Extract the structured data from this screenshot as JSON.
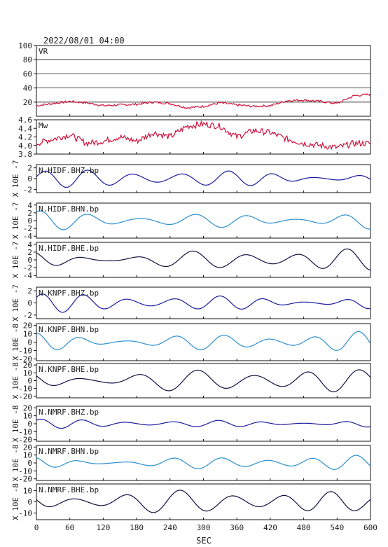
{
  "header": {
    "timestamp": "2022/08/01 04:00"
  },
  "chart_data": {
    "type": "line",
    "x_axis": {
      "label": "SEC",
      "range": [
        0,
        600
      ],
      "ticks": [
        "0",
        "60",
        "120",
        "180",
        "240",
        "300",
        "360",
        "420",
        "480",
        "540",
        "600"
      ]
    },
    "panels": [
      {
        "id": "vr",
        "title": "VR",
        "ylabel": "",
        "ylim": [
          0,
          100
        ],
        "yticks": [
          "100",
          "80",
          "60",
          "40",
          "20"
        ],
        "tickvals": [
          100,
          80,
          60,
          40,
          20
        ],
        "hgrid": true,
        "color": "#d0103a",
        "series": {
          "type": "keys",
          "x": [
            0,
            30,
            60,
            90,
            120,
            150,
            180,
            210,
            240,
            270,
            300,
            330,
            360,
            390,
            420,
            450,
            480,
            510,
            540,
            570,
            600
          ],
          "values": [
            15,
            18,
            21,
            19,
            15,
            16,
            17,
            20,
            18,
            12,
            14,
            19,
            16,
            14,
            15,
            22,
            23,
            21,
            18,
            29,
            31
          ]
        }
      },
      {
        "id": "mw",
        "title": "Mw",
        "ylabel": "",
        "ylim": [
          3.8,
          4.6
        ],
        "yticks": [
          "4.6",
          "4.4",
          "4.2",
          "4.0",
          "3.8"
        ],
        "tickvals": [
          4.6,
          4.4,
          4.2,
          4.0,
          3.8
        ],
        "hgrid": false,
        "color": "#d0103a",
        "series": {
          "type": "keys",
          "x": [
            0,
            30,
            60,
            90,
            120,
            150,
            180,
            210,
            240,
            270,
            300,
            330,
            360,
            390,
            420,
            450,
            480,
            510,
            540,
            570,
            600
          ],
          "values": [
            4.05,
            4.15,
            4.25,
            4.05,
            4.1,
            4.2,
            4.1,
            4.3,
            4.2,
            4.45,
            4.5,
            4.45,
            4.2,
            4.35,
            4.3,
            4.15,
            4.05,
            4.0,
            3.95,
            4.05,
            4.05
          ]
        }
      },
      {
        "id": "hidf-bhz",
        "title": "N.HIDF.BHZ.bp",
        "ylabel": "X 10E -7",
        "ylim": [
          -2.6,
          2.6
        ],
        "yticks": [
          "2",
          "0",
          "-2"
        ],
        "tickvals": [
          2,
          0,
          -2
        ],
        "hgrid": false,
        "color": "#1a1aa0",
        "series": {
          "type": "wave",
          "amp": 1.4,
          "freq": 0.068,
          "phase": 0.3
        }
      },
      {
        "id": "hidf-bhn",
        "title": "N.HIDF.BHN.bp",
        "ylabel": "X 10E -7",
        "ylim": [
          -4.5,
          4.5
        ],
        "yticks": [
          "4",
          "2",
          "0",
          "-2",
          "-4"
        ],
        "tickvals": [
          4,
          2,
          0,
          -2,
          -4
        ],
        "hgrid": false,
        "color": "#2a8fd0",
        "series": {
          "type": "wave",
          "amp": 2.2,
          "freq": 0.06,
          "phase": 1.1
        }
      },
      {
        "id": "hidf-bhe",
        "title": "N.HIDF.BHE.bp",
        "ylabel": "X 10E -7",
        "ylim": [
          -4.5,
          4.5
        ],
        "yticks": [
          "4",
          "2",
          "0",
          "-2",
          "-4"
        ],
        "tickvals": [
          4,
          2,
          0,
          -2,
          -4
        ],
        "hgrid": false,
        "color": "#101040",
        "series": {
          "type": "wave",
          "amp": 2.4,
          "freq": 0.058,
          "phase": 2.0
        }
      },
      {
        "id": "knpf-bhz",
        "title": "N.KNPF.BHZ.bp",
        "ylabel": "X 10E -7",
        "ylim": [
          -2.6,
          2.6
        ],
        "yticks": [
          "2",
          "0",
          "-2"
        ],
        "tickvals": [
          2,
          0,
          -2
        ],
        "hgrid": false,
        "color": "#1a1aa0",
        "series": {
          "type": "wave",
          "amp": 1.3,
          "freq": 0.07,
          "phase": 0.7
        }
      },
      {
        "id": "knpf-bhn",
        "title": "N.KNPF.BHN.bp",
        "ylabel": "X 10E -8",
        "ylim": [
          -22,
          22
        ],
        "yticks": [
          "20",
          "10",
          "0",
          "-10",
          "-20"
        ],
        "tickvals": [
          20,
          10,
          0,
          -10,
          -20
        ],
        "hgrid": false,
        "color": "#2a8fd0",
        "series": {
          "type": "wave",
          "amp": 11,
          "freq": 0.066,
          "phase": 1.6
        }
      },
      {
        "id": "knpf-bhe",
        "title": "N.KNPF.BHE.bp",
        "ylabel": "X 10E -8",
        "ylim": [
          -22,
          22
        ],
        "yticks": [
          "20",
          "10",
          "0",
          "-10",
          "-20"
        ],
        "tickvals": [
          20,
          10,
          0,
          -10,
          -20
        ],
        "hgrid": false,
        "color": "#101040",
        "series": {
          "type": "wave",
          "amp": 13,
          "freq": 0.055,
          "phase": 2.4
        }
      },
      {
        "id": "nmrf-bhz",
        "title": "N.NMRF.BHZ.bp",
        "ylabel": "X 10E -8",
        "ylim": [
          -22,
          22
        ],
        "yticks": [
          "20",
          "10",
          "0",
          "-10",
          "-20"
        ],
        "tickvals": [
          20,
          10,
          0,
          -10,
          -20
        ],
        "hgrid": false,
        "color": "#1a1aa0",
        "series": {
          "type": "wave",
          "amp": 5,
          "freq": 0.07,
          "phase": 0.9
        }
      },
      {
        "id": "nmrf-bhn",
        "title": "N.NMRF.BHN.bp",
        "ylabel": "X 10E -8",
        "ylim": [
          -22,
          22
        ],
        "yticks": [
          "20",
          "10",
          "0",
          "-10",
          "-20"
        ],
        "tickvals": [
          20,
          10,
          0,
          -10,
          -20
        ],
        "hgrid": false,
        "color": "#2a8fd0",
        "series": {
          "type": "wave",
          "amp": 8,
          "freq": 0.066,
          "phase": 1.9
        }
      },
      {
        "id": "nmrf-bhe",
        "title": "N.NMRF.BHE.bp",
        "ylabel": "X 10E -8",
        "ylim": [
          -16,
          16
        ],
        "yticks": [
          "10",
          "0",
          "-10"
        ],
        "tickvals": [
          10,
          0,
          -10
        ],
        "hgrid": false,
        "color": "#101040",
        "series": {
          "type": "wave",
          "amp": 9,
          "freq": 0.06,
          "phase": 2.8
        }
      }
    ]
  }
}
